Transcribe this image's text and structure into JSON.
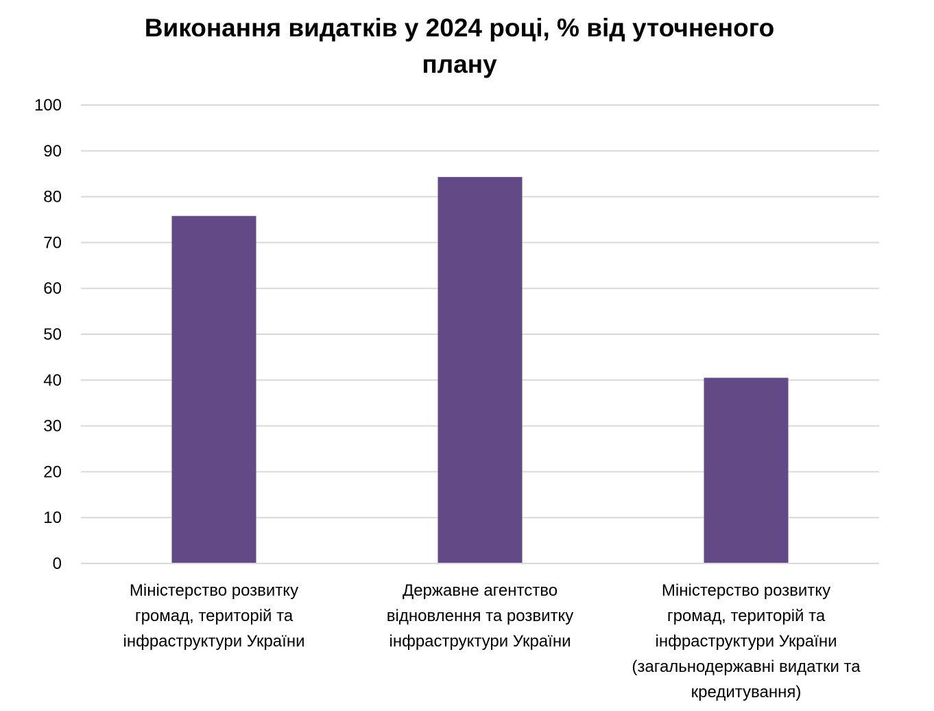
{
  "chart_data": {
    "type": "bar",
    "title": "Виконання видатків у 2024 році, % від уточненого плану",
    "categories": [
      [
        "Міністерство розвитку",
        "громад, територій та",
        "інфраструктури України"
      ],
      [
        "Державне агентство",
        "відновлення та розвитку",
        "інфраструктури України"
      ],
      [
        "Міністерство розвитку",
        "громад, територій та",
        "інфраструктури України",
        "(загальнодержавні видатки та",
        "кредитування)"
      ]
    ],
    "values": [
      75.8,
      84.3,
      40.5
    ],
    "ylim": [
      0,
      100
    ],
    "yticks": [
      "0",
      "10",
      "20",
      "30",
      "40",
      "50",
      "60",
      "70",
      "80",
      "90",
      "100"
    ],
    "xlabel": "",
    "ylabel": "",
    "grid": true,
    "bar_color": "#624a86",
    "grid_color": "#d9d9d9"
  }
}
